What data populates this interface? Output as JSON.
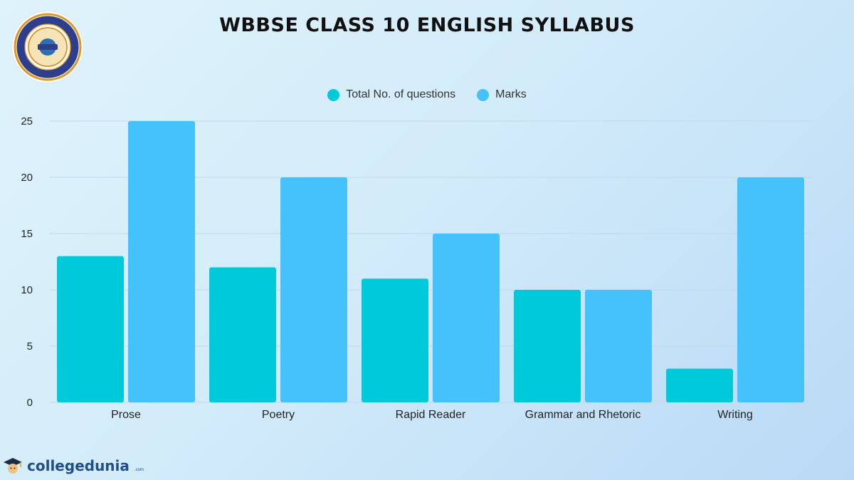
{
  "header": {
    "title": "WBBSE CLASS 10 ENGLISH SYLLABUS"
  },
  "colors": {
    "questions": "#00c9d9",
    "marks": "#45c1fc",
    "grid": "#c3d7e6",
    "axis_text": "#222222",
    "brand": "#1f4e8c"
  },
  "logo": {
    "icon": "west-bengal-board-seal-icon",
    "text": "West Bengal Board of Secondary Education"
  },
  "chart_data": {
    "type": "bar",
    "categories": [
      "Prose",
      "Poetry",
      "Rapid Reader",
      "Grammar and Rhetoric",
      "Writing"
    ],
    "series": [
      {
        "name": "Total No. of questions",
        "values": [
          13,
          12,
          11,
          10,
          3
        ]
      },
      {
        "name": "Marks",
        "values": [
          25,
          20,
          15,
          10,
          20
        ]
      }
    ],
    "title": "WBBSE CLASS 10 ENGLISH SYLLABUS",
    "xlabel": "",
    "ylabel": "",
    "ylim": [
      0,
      25
    ],
    "yticks": [
      "0",
      "5",
      "10",
      "15",
      "20",
      "25"
    ],
    "grid": true,
    "legend_position": "top-center"
  },
  "footer": {
    "brand": "collegedunia",
    "brand_suffix": ".com",
    "brand_icon": "graduate-mascot-icon"
  }
}
